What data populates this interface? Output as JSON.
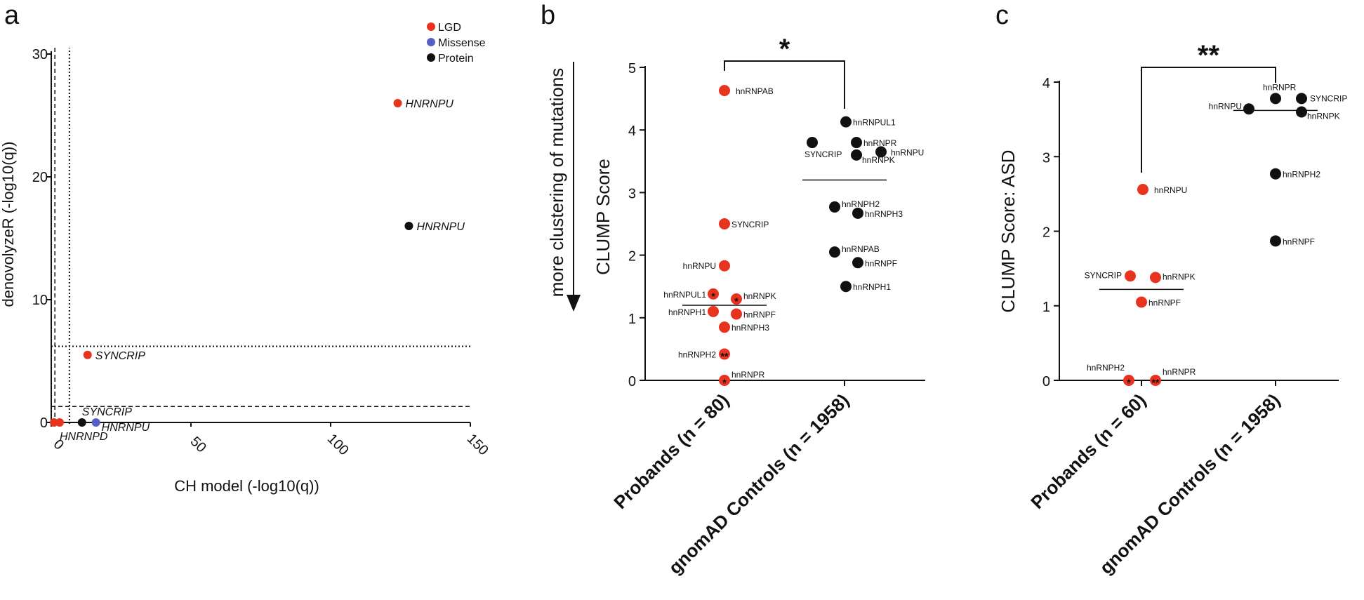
{
  "colors": {
    "LGD": "#e8331f",
    "Missense": "#5560c4",
    "Protein": "#111111"
  },
  "chart_data": [
    {
      "panel": "a",
      "type": "scatter",
      "xlabel": "CH model (-log10(q))",
      "ylabel": "denovolyzeR (-log10(q))",
      "xlim": [
        0,
        150
      ],
      "ylim": [
        0,
        30
      ],
      "xticks": [
        0,
        50,
        100,
        150
      ],
      "yticks": [
        0,
        10,
        20,
        30
      ],
      "legend": [
        {
          "label": "LGD",
          "color": "#e8331f"
        },
        {
          "label": "Missense",
          "color": "#5560c4"
        },
        {
          "label": "Protein",
          "color": "#111111"
        }
      ],
      "legend_position": "top-right",
      "thresholds": {
        "x_dotted": 6.5,
        "x_dashed": 1.3,
        "y_dotted": 6.2,
        "y_dashed": 1.3
      },
      "points": [
        {
          "x": 124,
          "y": 26,
          "class": "LGD",
          "label": "HNRNPU"
        },
        {
          "x": 128,
          "y": 16,
          "class": "Protein",
          "label": "HNRNPU"
        },
        {
          "x": 13,
          "y": 5.5,
          "class": "LGD",
          "label": "SYNCRIP"
        },
        {
          "x": 1,
          "y": 0,
          "class": "LGD",
          "label": "HNRNPD"
        },
        {
          "x": 3,
          "y": 0,
          "class": "LGD",
          "label": ""
        },
        {
          "x": 11,
          "y": 0,
          "class": "Protein",
          "label": "SYNCRIP"
        },
        {
          "x": 16,
          "y": 0,
          "class": "Missense",
          "label": "HNRNPU"
        }
      ]
    },
    {
      "panel": "b",
      "type": "scatter",
      "ylabel": "CLUMP Score",
      "arrow_label": "more clustering of mutations",
      "ylim": [
        0,
        5
      ],
      "yticks": [
        0,
        1,
        2,
        3,
        4,
        5
      ],
      "categories": [
        "Probands (n = 80)",
        "gnomAD Controls (n = 1958)"
      ],
      "significance": "*",
      "medians": [
        1.2,
        3.2
      ],
      "series": [
        {
          "name": "Probands (n = 80)",
          "color": "#e8331f",
          "points": [
            {
              "label": "hnRNPAB",
              "y": 4.63
            },
            {
              "label": "SYNCRIP",
              "y": 2.5
            },
            {
              "label": "hnRNPU",
              "y": 1.83
            },
            {
              "label": "hnRNPUL1",
              "y": 1.38,
              "mark": "*"
            },
            {
              "label": "hnRNPK",
              "y": 1.3,
              "mark": "*"
            },
            {
              "label": "hnRNPH1",
              "y": 1.1
            },
            {
              "label": "hnRNPF",
              "y": 1.06
            },
            {
              "label": "hnRNPH3",
              "y": 0.85
            },
            {
              "label": "hnRNPH2",
              "y": 0.42,
              "mark": "**"
            },
            {
              "label": "hnRNPR",
              "y": 0.0,
              "mark": "*"
            }
          ]
        },
        {
          "name": "gnomAD Controls (n = 1958)",
          "color": "#111111",
          "points": [
            {
              "label": "hnRNPUL1",
              "y": 4.13
            },
            {
              "label": "SYNCRIP",
              "y": 3.8
            },
            {
              "label": "hnRNPR",
              "y": 3.8
            },
            {
              "label": "hnRNPU",
              "y": 3.65
            },
            {
              "label": "hnRNPK",
              "y": 3.6
            },
            {
              "label": "hnRNPH2",
              "y": 2.77
            },
            {
              "label": "hnRNPH3",
              "y": 2.67
            },
            {
              "label": "hnRNPAB",
              "y": 2.05
            },
            {
              "label": "hnRNPF",
              "y": 1.88
            },
            {
              "label": "hnRNPH1",
              "y": 1.5
            }
          ]
        }
      ]
    },
    {
      "panel": "c",
      "type": "scatter",
      "ylabel": "CLUMP Score: ASD",
      "ylim": [
        0,
        4
      ],
      "yticks": [
        0,
        1,
        2,
        3,
        4
      ],
      "categories": [
        "Probands (n = 60)",
        "gnomAD Controls (n = 1958)"
      ],
      "significance": "**",
      "medians": [
        1.22,
        3.62
      ],
      "series": [
        {
          "name": "Probands (n = 60)",
          "color": "#e8331f",
          "points": [
            {
              "label": "hnRNPU",
              "y": 2.56
            },
            {
              "label": "SYNCRIP",
              "y": 1.4
            },
            {
              "label": "hnRNPK",
              "y": 1.38
            },
            {
              "label": "hnRNPF",
              "y": 1.05
            },
            {
              "label": "hnRNPH2",
              "y": 0.0,
              "mark": "*"
            },
            {
              "label": "hnRNPR",
              "y": 0.0,
              "mark": "**"
            }
          ]
        },
        {
          "name": "gnomAD Controls (n = 1958)",
          "color": "#111111",
          "points": [
            {
              "label": "hnRNPR",
              "y": 3.78
            },
            {
              "label": "SYNCRIP",
              "y": 3.78
            },
            {
              "label": "hnRNPU",
              "y": 3.64
            },
            {
              "label": "hnRNPK",
              "y": 3.6
            },
            {
              "label": "hnRNPH2",
              "y": 2.77
            },
            {
              "label": "hnRNPF",
              "y": 1.87
            }
          ]
        }
      ]
    }
  ]
}
